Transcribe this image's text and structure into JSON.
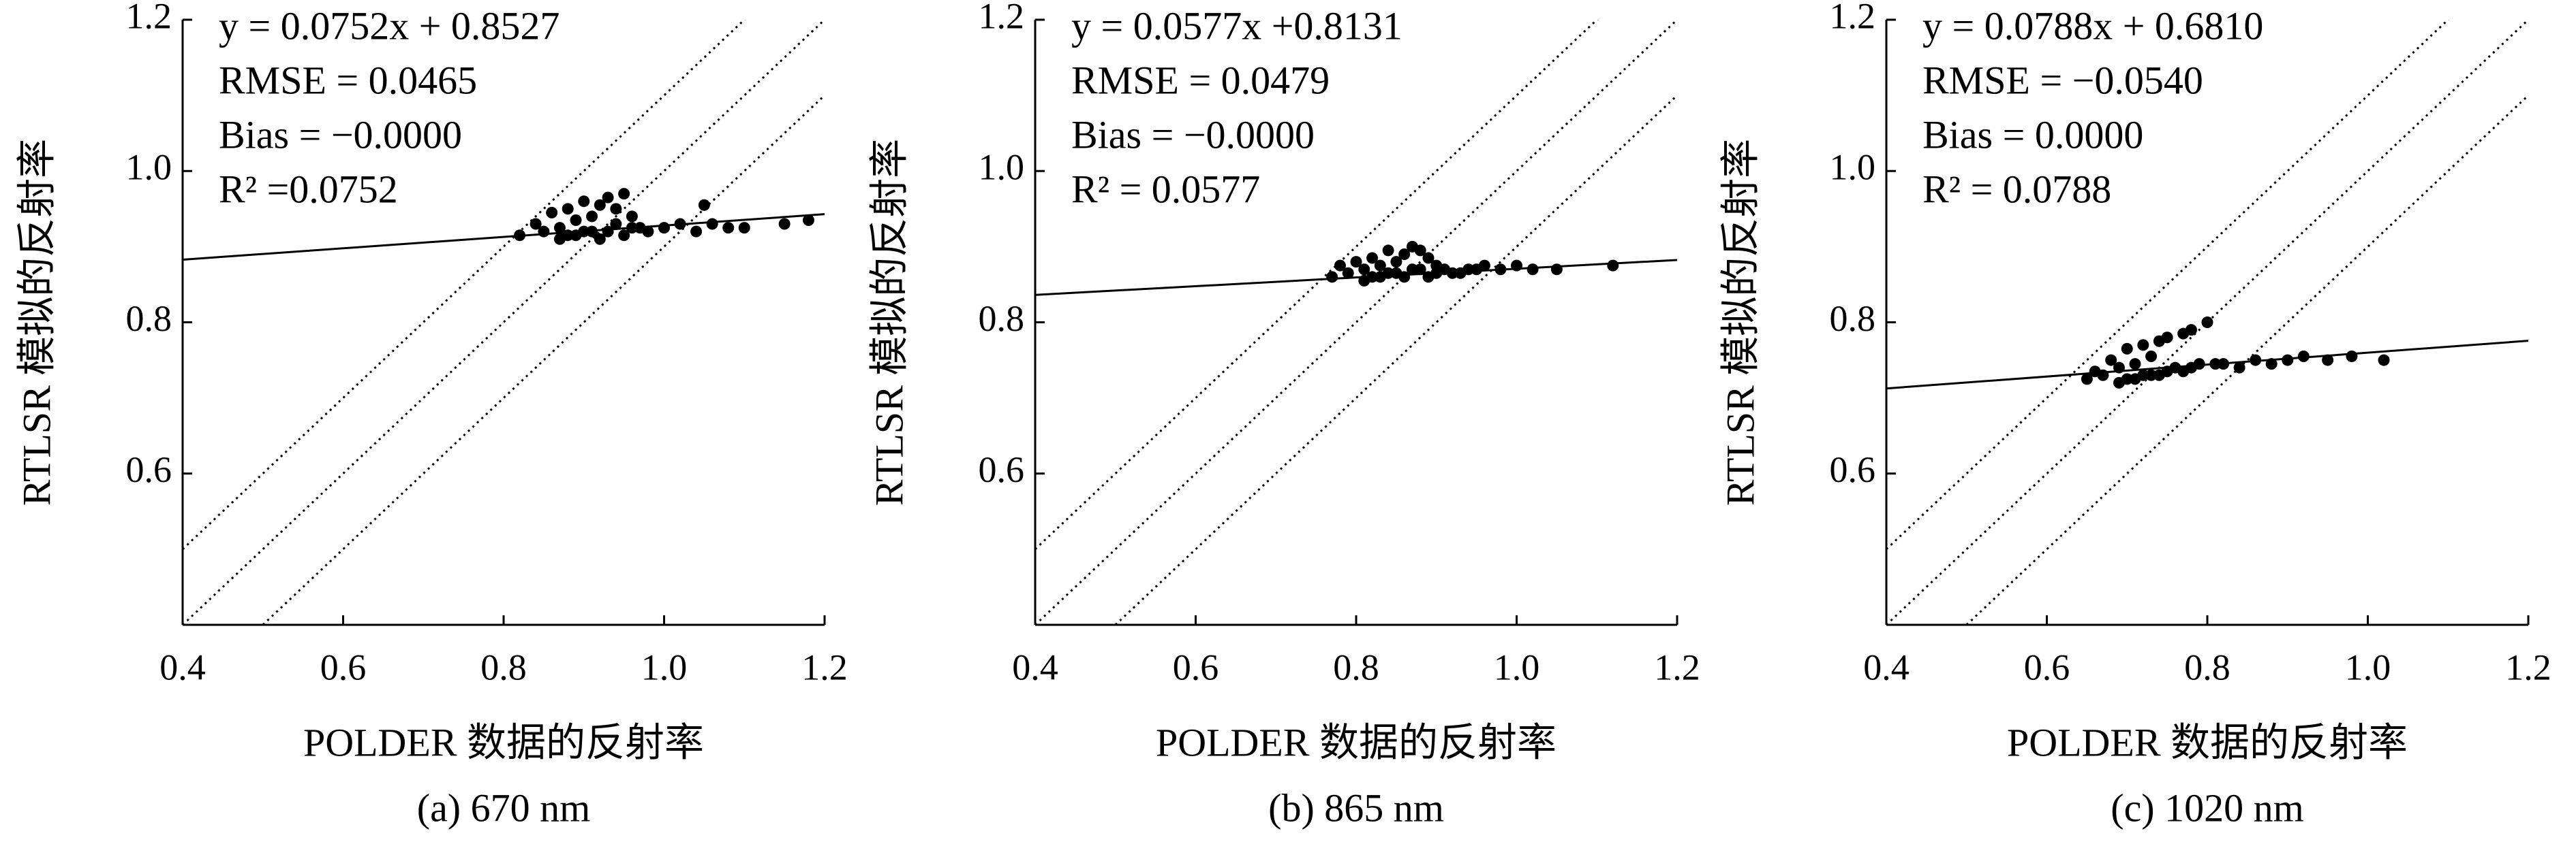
{
  "chart_data": [
    {
      "type": "scatter",
      "caption": "(a) 670 nm",
      "xlabel": "POLDER 数据的反射率",
      "ylabel": "RTLSR 模拟的反射率",
      "color": "#000000",
      "annotations": [
        "y = 0.0752x + 0.8527",
        "RMSE = 0.0465",
        "Bias = −0.0000",
        "R² =0.0752"
      ],
      "fit": {
        "slope": 0.0752,
        "intercept": 0.8527
      },
      "reference_offsets": [
        0.1,
        0,
        -0.1
      ],
      "xlim": [
        0.4,
        1.2
      ],
      "ylim": [
        0.4,
        1.2
      ],
      "xticks": [
        0.4,
        0.6,
        0.8,
        {
          "value": 1,
          "label": "1.0"
        },
        1.2
      ],
      "yticks": [
        0.6,
        0.8,
        {
          "value": 1,
          "label": "1.0"
        },
        1.2
      ],
      "x": [
        0.82,
        0.84,
        0.85,
        0.86,
        0.87,
        0.88,
        0.88,
        0.89,
        0.9,
        0.9,
        0.91,
        0.92,
        0.92,
        0.93,
        0.94,
        0.95,
        0.95,
        0.96,
        0.97,
        0.98,
        1.0,
        1.02,
        1.04,
        1.05,
        1.06,
        1.08,
        1.1,
        1.15,
        1.18,
        0.87,
        0.89,
        0.91,
        0.93,
        0.94,
        0.96
      ],
      "values": [
        0.915,
        0.93,
        0.92,
        0.945,
        0.925,
        0.95,
        0.915,
        0.935,
        0.96,
        0.92,
        0.94,
        0.955,
        0.91,
        0.965,
        0.93,
        0.97,
        0.915,
        0.94,
        0.925,
        0.92,
        0.925,
        0.93,
        0.92,
        0.955,
        0.93,
        0.925,
        0.925,
        0.93,
        0.935,
        0.91,
        0.915,
        0.92,
        0.92,
        0.95,
        0.925
      ]
    },
    {
      "type": "scatter",
      "caption": "(b) 865 nm",
      "xlabel": "POLDER 数据的反射率",
      "ylabel": "RTLSR 模拟的反射率",
      "color": "#000000",
      "annotations": [
        "y = 0.0577x +0.8131",
        "RMSE = 0.0479",
        "Bias = −0.0000",
        "R² = 0.0577"
      ],
      "fit": {
        "slope": 0.0577,
        "intercept": 0.8131
      },
      "reference_offsets": [
        0.1,
        0,
        -0.1
      ],
      "xlim": [
        0.4,
        1.2
      ],
      "ylim": [
        0.4,
        1.2
      ],
      "xticks": [
        0.4,
        0.6,
        0.8,
        {
          "value": 1,
          "label": "1.0"
        },
        1.2
      ],
      "yticks": [
        0.6,
        0.8,
        {
          "value": 1,
          "label": "1.0"
        },
        1.2
      ],
      "x": [
        0.77,
        0.78,
        0.79,
        0.8,
        0.81,
        0.82,
        0.82,
        0.83,
        0.84,
        0.84,
        0.85,
        0.86,
        0.86,
        0.87,
        0.88,
        0.89,
        0.89,
        0.9,
        0.91,
        0.92,
        0.94,
        0.96,
        0.98,
        1.0,
        1.02,
        1.05,
        1.12,
        0.81,
        0.83,
        0.85,
        0.87,
        0.88,
        0.9,
        0.93,
        0.95
      ],
      "values": [
        0.86,
        0.875,
        0.865,
        0.88,
        0.87,
        0.885,
        0.86,
        0.875,
        0.895,
        0.865,
        0.88,
        0.89,
        0.86,
        0.9,
        0.87,
        0.885,
        0.86,
        0.875,
        0.87,
        0.865,
        0.87,
        0.875,
        0.87,
        0.875,
        0.87,
        0.87,
        0.875,
        0.855,
        0.86,
        0.865,
        0.87,
        0.895,
        0.865,
        0.865,
        0.87
      ]
    },
    {
      "type": "scatter",
      "caption": "(c) 1020 nm",
      "xlabel": "POLDER 数据的反射率",
      "ylabel": "RTLSR 模拟的反射率",
      "color": "#000000",
      "annotations": [
        "y = 0.0788x + 0.6810",
        "RMSE = −0.0540",
        "Bias = 0.0000",
        "R² = 0.0788"
      ],
      "fit": {
        "slope": 0.0788,
        "intercept": 0.681
      },
      "reference_offsets": [
        0.1,
        0,
        -0.1
      ],
      "xlim": [
        0.4,
        1.2
      ],
      "ylim": [
        0.4,
        1.2
      ],
      "xticks": [
        0.4,
        0.6,
        0.8,
        {
          "value": 1,
          "label": "1.0"
        },
        1.2
      ],
      "yticks": [
        0.6,
        0.8,
        {
          "value": 1,
          "label": "1.0"
        },
        1.2
      ],
      "x": [
        0.65,
        0.66,
        0.67,
        0.68,
        0.69,
        0.7,
        0.7,
        0.71,
        0.72,
        0.72,
        0.73,
        0.74,
        0.74,
        0.75,
        0.76,
        0.77,
        0.77,
        0.78,
        0.79,
        0.8,
        0.82,
        0.84,
        0.86,
        0.88,
        0.9,
        0.92,
        0.95,
        0.98,
        1.02,
        0.69,
        0.71,
        0.73,
        0.75,
        0.78,
        0.81
      ],
      "values": [
        0.725,
        0.735,
        0.73,
        0.75,
        0.74,
        0.765,
        0.725,
        0.745,
        0.77,
        0.73,
        0.755,
        0.775,
        0.73,
        0.78,
        0.74,
        0.785,
        0.735,
        0.79,
        0.745,
        0.8,
        0.745,
        0.74,
        0.75,
        0.745,
        0.75,
        0.755,
        0.75,
        0.755,
        0.75,
        0.72,
        0.725,
        0.73,
        0.735,
        0.74,
        0.745
      ]
    }
  ]
}
